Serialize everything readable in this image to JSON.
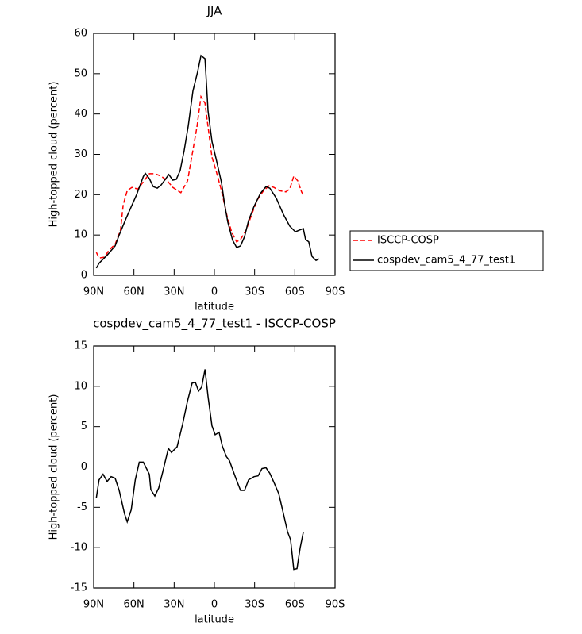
{
  "chart_data": [
    {
      "type": "line",
      "title": "JJA",
      "xlabel": "latitude",
      "ylabel": "High-topped cloud (percent)",
      "xlim": [
        90,
        -90
      ],
      "xticks": [
        {
          "value": 90,
          "label": "90N"
        },
        {
          "value": 60,
          "label": "60N"
        },
        {
          "value": 30,
          "label": "30N"
        },
        0,
        {
          "value": -30,
          "label": "30S"
        },
        {
          "value": -60,
          "label": "60S"
        },
        {
          "value": -90,
          "label": "90S"
        }
      ],
      "ylim": [
        0,
        60
      ],
      "yticks": [
        0,
        10,
        20,
        30,
        40,
        50,
        60
      ],
      "legend": "outside-right",
      "series": [
        {
          "name": "ISCCP-COSP",
          "color": "#ff0000",
          "dash": "dashed",
          "x": [
            88,
            86,
            82,
            78.5,
            74,
            70,
            68,
            65,
            61.5,
            57,
            52.5,
            48.5,
            44.4,
            39.7,
            35,
            31,
            25,
            20,
            16.6,
            13,
            10,
            7,
            4.7,
            1.8,
            -1.2,
            -5.3,
            -9.4,
            -13,
            -16.6,
            -19.5,
            -23.7,
            -27.8,
            -32,
            -36.7,
            -40.8,
            -44.4,
            -48.5,
            -53.3,
            -56.2,
            -59.2,
            -62.2,
            -65,
            -67
          ],
          "values": [
            5.7,
            4.3,
            4.5,
            6.3,
            7.7,
            11.2,
            17.5,
            21,
            21.8,
            21.4,
            23.4,
            25.2,
            25.2,
            24.6,
            23.4,
            21.8,
            20.5,
            23.4,
            29.9,
            36.8,
            44.3,
            42.7,
            36.8,
            29.3,
            26,
            21,
            14.8,
            10.6,
            8.3,
            8.9,
            11.2,
            15.1,
            18.7,
            21,
            22.2,
            21.8,
            21,
            20.7,
            21.4,
            24.6,
            23.4,
            20.7,
            19.5
          ]
        },
        {
          "name": "cospdev_cam5_4_77_test1",
          "color": "#000000",
          "dash": "solid",
          "x": [
            88,
            86,
            80,
            74,
            71,
            66,
            62,
            58,
            53,
            51.5,
            48.5,
            45.6,
            42.6,
            39.7,
            34,
            31,
            28.4,
            25.5,
            22.5,
            19.5,
            16,
            12.4,
            10,
            7,
            4.7,
            1.8,
            -1.2,
            -5.3,
            -7.7,
            -10,
            -13.6,
            -16.6,
            -19.5,
            -22.5,
            -25.5,
            -29.6,
            -34.3,
            -38.5,
            -41.4,
            -46.2,
            -51.5,
            -56.2,
            -60.4,
            -63.3,
            -66.3,
            -68,
            -70.4,
            -72.8,
            -75.8,
            -78
          ],
          "values": [
            1.8,
            3,
            5,
            7.3,
            10,
            14,
            17,
            20,
            24.5,
            25.3,
            24,
            22,
            21.6,
            22.4,
            25,
            23.6,
            23.8,
            26,
            31,
            37,
            45.7,
            50.6,
            54.5,
            53.7,
            40.7,
            33.2,
            29,
            23,
            17.5,
            13.2,
            8.7,
            6.9,
            7.3,
            9.6,
            13.6,
            17.1,
            20.3,
            22,
            21.6,
            19.1,
            15.1,
            12.2,
            10.8,
            11.2,
            11.6,
            8.9,
            8.3,
            4.7,
            3.7,
            4.1
          ]
        }
      ]
    },
    {
      "type": "line",
      "title": "cospdev_cam5_4_77_test1 - ISCCP-COSP",
      "xlabel": "latitude",
      "ylabel": "High-topped cloud (percent)",
      "xlim": [
        90,
        -90
      ],
      "xticks": [
        {
          "value": 90,
          "label": "90N"
        },
        {
          "value": 60,
          "label": "60N"
        },
        {
          "value": 30,
          "label": "30N"
        },
        0,
        {
          "value": -30,
          "label": "30S"
        },
        {
          "value": -60,
          "label": "60S"
        },
        {
          "value": -90,
          "label": "90S"
        }
      ],
      "ylim": [
        -15,
        15
      ],
      "yticks": [
        -15,
        -10,
        -5,
        0,
        5,
        10,
        15
      ],
      "series": [
        {
          "color": "#000000",
          "dash": "solid",
          "x": [
            88,
            86,
            83,
            80,
            77,
            74,
            71,
            67,
            65,
            62,
            59,
            56,
            53,
            48.5,
            47.4,
            44.4,
            41.5,
            38.5,
            34.3,
            32,
            27.8,
            23.7,
            20,
            16.6,
            14.2,
            11.8,
            9.5,
            7,
            4.7,
            1.8,
            -0.6,
            -3.5,
            -5.9,
            -8.9,
            -11.2,
            -16,
            -19.5,
            -22.5,
            -25.5,
            -29.6,
            -32.6,
            -35.5,
            -38.5,
            -41.4,
            -44.4,
            -48,
            -51.5,
            -54.5,
            -56.8,
            -59.2,
            -61.6,
            -64,
            -66.3
          ],
          "values": [
            -3.8,
            -1.6,
            -0.9,
            -1.8,
            -1.2,
            -1.4,
            -2.9,
            -5.8,
            -6.8,
            -5.3,
            -1.6,
            0.6,
            0.6,
            -0.9,
            -2.8,
            -3.6,
            -2.6,
            -0.6,
            2.3,
            1.8,
            2.5,
            5.3,
            8.2,
            10.4,
            10.5,
            9.4,
            9.9,
            12.1,
            8.7,
            5.1,
            4,
            4.3,
            2.6,
            1.3,
            0.8,
            -1.4,
            -2.9,
            -2.9,
            -1.6,
            -1.2,
            -1.1,
            -0.2,
            -0.1,
            -0.8,
            -1.9,
            -3.3,
            -5.8,
            -8,
            -9,
            -12.7,
            -12.6,
            -10,
            -8.1
          ]
        }
      ]
    }
  ]
}
